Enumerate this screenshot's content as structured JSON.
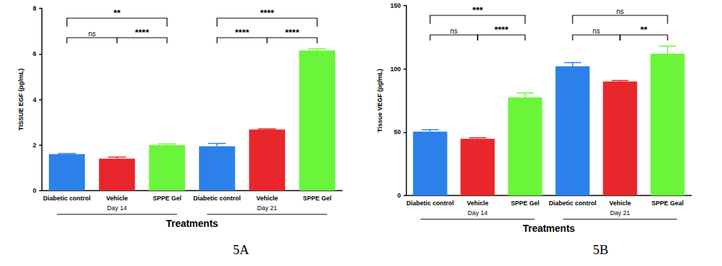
{
  "chart_data": [
    {
      "type": "bar",
      "caption": "5A",
      "ylabel": "TISSUE EGF (pg/mL)",
      "xlabel": "Treatments",
      "categories": [
        "Diabetic control",
        "Vehicle",
        "SPPE Gel",
        "Diabetic control",
        "Vehicle",
        "SPPE Gel"
      ],
      "values": [
        1.6,
        1.4,
        2.0,
        1.95,
        2.68,
        6.15
      ],
      "errors": [
        0.03,
        0.07,
        0.05,
        0.12,
        0.03,
        0.07
      ],
      "colors": [
        "#2b80ea",
        "#e8262b",
        "#6af53a",
        "#2b80ea",
        "#e8262b",
        "#6af53a"
      ],
      "ylim": [
        0,
        8
      ],
      "yticks": [
        0,
        2,
        4,
        6,
        8
      ],
      "grid": false,
      "groups": [
        {
          "label": "Day 14",
          "from": 0,
          "to": 2
        },
        {
          "label": "Day 21",
          "from": 3,
          "to": 5
        }
      ],
      "comparisons": [
        {
          "from": 0,
          "to": 1,
          "label": "ns"
        },
        {
          "from": 1,
          "to": 2,
          "label": "****"
        },
        {
          "from": 0,
          "to": 2,
          "label": "**"
        },
        {
          "from": 3,
          "to": 4,
          "label": "****"
        },
        {
          "from": 4,
          "to": 5,
          "label": "****"
        },
        {
          "from": 3,
          "to": 5,
          "label": "****"
        }
      ]
    },
    {
      "type": "bar",
      "caption": "5B",
      "ylabel": "Tissue VEGF (pg/mL)",
      "xlabel": "Treatments",
      "categories": [
        "Diabetic control",
        "Vehicle",
        "SPPE Gel",
        "Diabetic control",
        "Vehicle",
        "SPPE Geal"
      ],
      "values": [
        50.5,
        44.8,
        77.5,
        102,
        90,
        112
      ],
      "errors": [
        1.5,
        0.8,
        3.5,
        3,
        0.8,
        6
      ],
      "colors": [
        "#2b80ea",
        "#e8262b",
        "#6af53a",
        "#2b80ea",
        "#e8262b",
        "#6af53a"
      ],
      "ylim": [
        0,
        150
      ],
      "yticks": [
        0,
        50,
        100,
        150
      ],
      "grid": false,
      "groups": [
        {
          "label": "Day 14",
          "from": 0,
          "to": 2
        },
        {
          "label": "Day 21",
          "from": 3,
          "to": 5
        }
      ],
      "comparisons": [
        {
          "from": 0,
          "to": 1,
          "label": "ns"
        },
        {
          "from": 1,
          "to": 2,
          "label": "****"
        },
        {
          "from": 0,
          "to": 2,
          "label": "***"
        },
        {
          "from": 3,
          "to": 4,
          "label": "ns"
        },
        {
          "from": 4,
          "to": 5,
          "label": "**"
        },
        {
          "from": 3,
          "to": 5,
          "label": "ns"
        }
      ]
    }
  ]
}
